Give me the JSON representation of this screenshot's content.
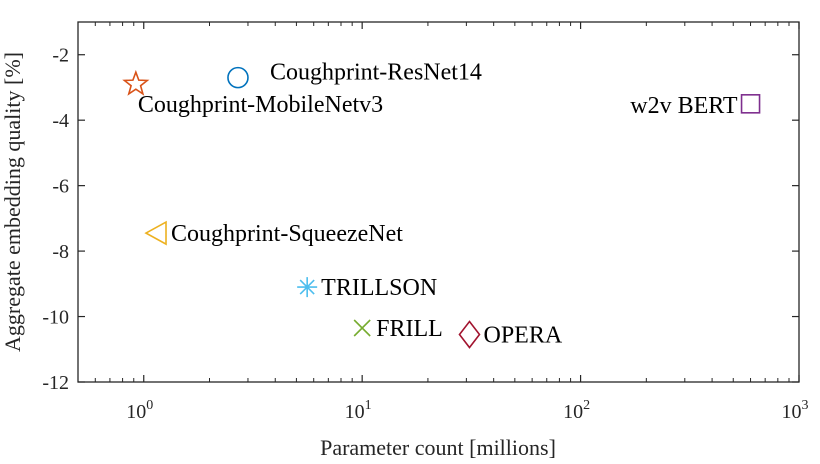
{
  "chart_data": {
    "type": "scatter",
    "xlabel": "Parameter count [millions]",
    "ylabel": "Aggregate embedding quality [%]",
    "xscale": "log",
    "xlim": [
      0.5,
      1000
    ],
    "ylim": [
      -12,
      -1
    ],
    "xticks": [
      {
        "value": 1,
        "base": "10",
        "exp": "0"
      },
      {
        "value": 10,
        "base": "10",
        "exp": "1"
      },
      {
        "value": 100,
        "base": "10",
        "exp": "2"
      },
      {
        "value": 1000,
        "base": "10",
        "exp": "3"
      }
    ],
    "yticks": [
      {
        "value": -2,
        "label": "-2"
      },
      {
        "value": -4,
        "label": "-4"
      },
      {
        "value": -6,
        "label": "-6"
      },
      {
        "value": -8,
        "label": "-8"
      },
      {
        "value": -10,
        "label": "-10"
      },
      {
        "value": -12,
        "label": "-12"
      }
    ],
    "grid": false,
    "points": [
      {
        "label": "Coughprint-ResNet14",
        "x": 2.7,
        "y": -2.7,
        "marker": "circle",
        "color": "#0072BD",
        "label_pos": "right-up"
      },
      {
        "label": "Coughprint-MobileNetv3",
        "x": 0.92,
        "y": -2.9,
        "marker": "star",
        "color": "#D95319",
        "label_pos": "below-right"
      },
      {
        "label": "w2v BERT",
        "x": 600,
        "y": -3.5,
        "marker": "square",
        "color": "#7E2F8E",
        "label_pos": "left"
      },
      {
        "label": "Coughprint-SqueezeNet",
        "x": 1.15,
        "y": -7.45,
        "marker": "triangle-left",
        "color": "#EDB120",
        "label_pos": "right"
      },
      {
        "label": "TRILLSON",
        "x": 5.6,
        "y": -9.1,
        "marker": "asterisk",
        "color": "#4DBEEE",
        "label_pos": "right"
      },
      {
        "label": "FRILL",
        "x": 10,
        "y": -10.35,
        "marker": "x",
        "color": "#77AC30",
        "label_pos": "right"
      },
      {
        "label": "OPERA",
        "x": 31,
        "y": -10.55,
        "marker": "diamond",
        "color": "#A2142F",
        "label_pos": "right"
      }
    ]
  }
}
